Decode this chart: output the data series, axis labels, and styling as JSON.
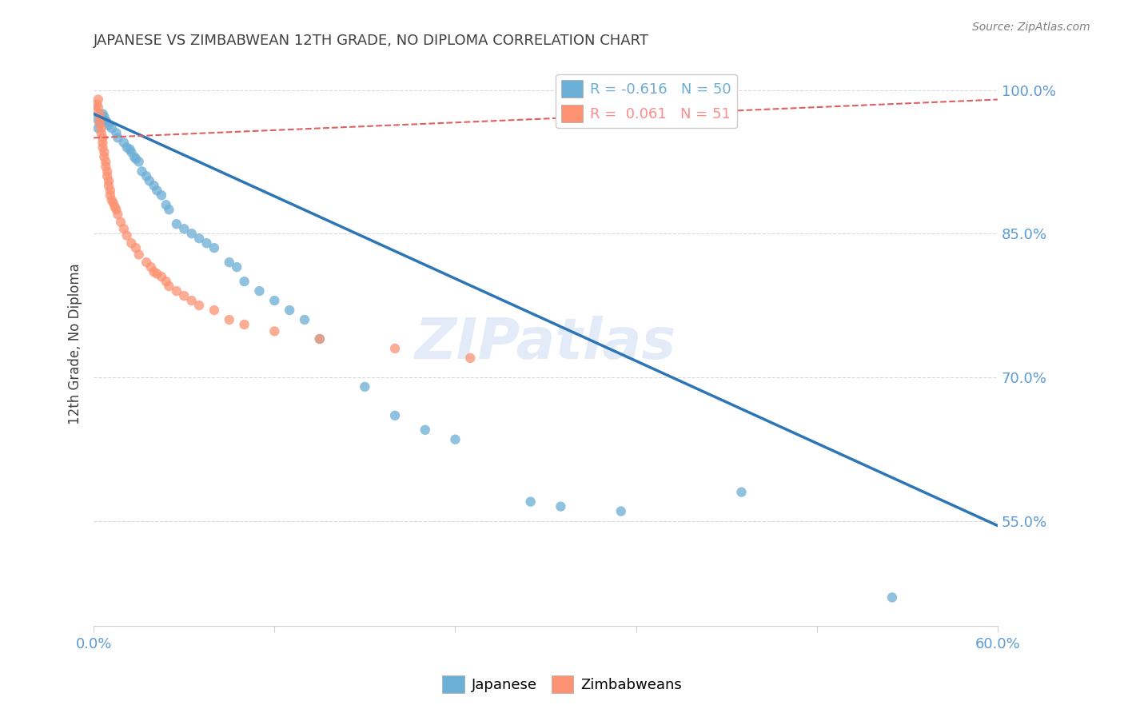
{
  "title": "JAPANESE VS ZIMBABWEAN 12TH GRADE, NO DIPLOMA CORRELATION CHART",
  "source": "Source: ZipAtlas.com",
  "xlabel_bottom": "",
  "ylabel": "12th Grade, No Diploma",
  "xlim": [
    0.0,
    0.6
  ],
  "ylim": [
    0.44,
    1.03
  ],
  "xticks": [
    0.0,
    0.12,
    0.24,
    0.36,
    0.48,
    0.6
  ],
  "xtick_labels": [
    "0.0%",
    "",
    "",
    "",
    "",
    "60.0%"
  ],
  "ytick_right": [
    1.0,
    0.85,
    0.7,
    0.55
  ],
  "ytick_right_labels": [
    "100.0%",
    "85.0%",
    "70.0%",
    "55.0%"
  ],
  "legend_items": [
    {
      "label": "R = -0.616   N = 50",
      "color": "#6baed6"
    },
    {
      "label": "R =  0.061   N = 51",
      "color": "#fc8d8d"
    }
  ],
  "legend_labels_bottom": [
    "Japanese",
    "Zimbabweans"
  ],
  "japanese_color": "#6baed6",
  "zimbabwean_color": "#fc9272",
  "watermark": "ZIPatlas",
  "watermark_color": "#c6d9f0",
  "japanese_x": [
    0.002,
    0.003,
    0.004,
    0.005,
    0.006,
    0.007,
    0.008,
    0.009,
    0.01,
    0.012,
    0.015,
    0.016,
    0.02,
    0.022,
    0.024,
    0.025,
    0.027,
    0.028,
    0.03,
    0.032,
    0.035,
    0.037,
    0.04,
    0.042,
    0.045,
    0.048,
    0.05,
    0.055,
    0.06,
    0.065,
    0.07,
    0.075,
    0.08,
    0.09,
    0.095,
    0.1,
    0.11,
    0.12,
    0.13,
    0.14,
    0.15,
    0.18,
    0.2,
    0.22,
    0.24,
    0.29,
    0.31,
    0.35,
    0.43,
    0.53
  ],
  "japanese_y": [
    0.97,
    0.96,
    0.965,
    0.97,
    0.975,
    0.972,
    0.968,
    0.966,
    0.963,
    0.96,
    0.955,
    0.95,
    0.945,
    0.94,
    0.938,
    0.935,
    0.93,
    0.928,
    0.925,
    0.915,
    0.91,
    0.905,
    0.9,
    0.895,
    0.89,
    0.88,
    0.875,
    0.86,
    0.855,
    0.85,
    0.845,
    0.84,
    0.835,
    0.82,
    0.815,
    0.8,
    0.79,
    0.78,
    0.77,
    0.76,
    0.74,
    0.69,
    0.66,
    0.645,
    0.635,
    0.57,
    0.565,
    0.56,
    0.58,
    0.47
  ],
  "zimbabwean_x": [
    0.001,
    0.002,
    0.003,
    0.003,
    0.004,
    0.004,
    0.004,
    0.005,
    0.005,
    0.006,
    0.006,
    0.006,
    0.007,
    0.007,
    0.008,
    0.008,
    0.009,
    0.009,
    0.01,
    0.01,
    0.011,
    0.011,
    0.012,
    0.013,
    0.014,
    0.015,
    0.016,
    0.018,
    0.02,
    0.022,
    0.025,
    0.028,
    0.03,
    0.035,
    0.038,
    0.04,
    0.042,
    0.045,
    0.048,
    0.05,
    0.055,
    0.06,
    0.065,
    0.07,
    0.08,
    0.09,
    0.1,
    0.12,
    0.15,
    0.2,
    0.25
  ],
  "zimbabwean_y": [
    0.98,
    0.985,
    0.99,
    0.982,
    0.975,
    0.97,
    0.965,
    0.96,
    0.955,
    0.95,
    0.945,
    0.94,
    0.935,
    0.93,
    0.925,
    0.92,
    0.915,
    0.91,
    0.905,
    0.9,
    0.895,
    0.89,
    0.885,
    0.882,
    0.878,
    0.875,
    0.87,
    0.862,
    0.855,
    0.848,
    0.84,
    0.835,
    0.828,
    0.82,
    0.815,
    0.81,
    0.808,
    0.805,
    0.8,
    0.795,
    0.79,
    0.785,
    0.78,
    0.775,
    0.77,
    0.76,
    0.755,
    0.748,
    0.74,
    0.73,
    0.72
  ],
  "blue_line_x": [
    0.0,
    0.6
  ],
  "blue_line_y": [
    0.975,
    0.545
  ],
  "pink_line_x": [
    0.0,
    0.6
  ],
  "pink_line_y": [
    0.95,
    0.99
  ],
  "grid_color": "#d0d0d0",
  "axis_color": "#5b9bd5",
  "title_color": "#404040",
  "tick_label_color": "#5b9bd5"
}
